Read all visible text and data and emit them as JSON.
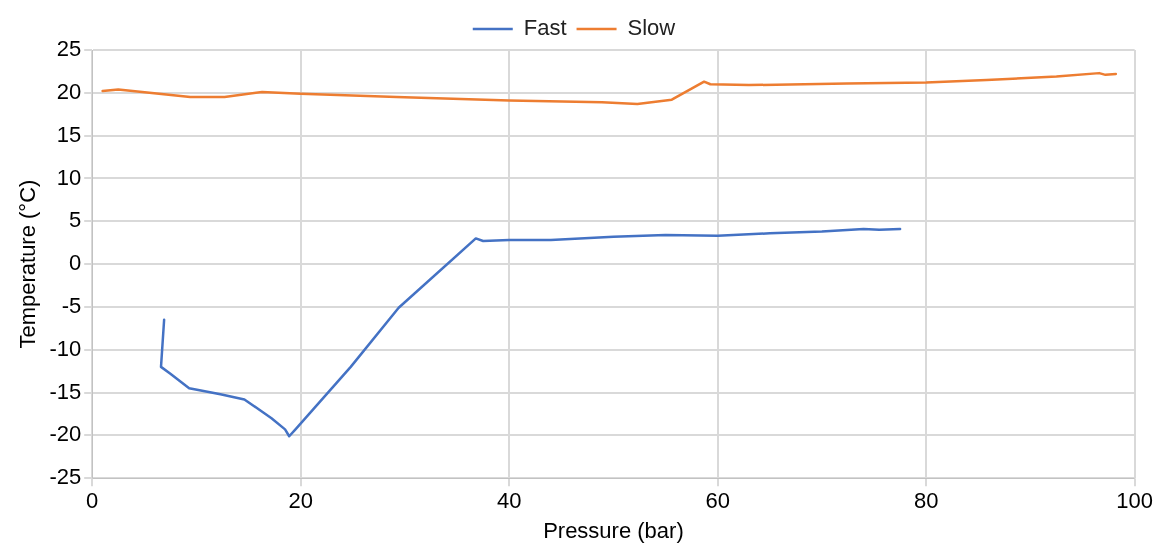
{
  "chart_data": {
    "type": "line",
    "xlabel": "Pressure (bar)",
    "ylabel": "Temperature (°C)",
    "xlim": [
      0,
      100
    ],
    "xticks": [
      0,
      20,
      40,
      60,
      80,
      100
    ],
    "ylim": [
      -25,
      25
    ],
    "yticks": [
      -25,
      -20,
      -15,
      -10,
      -5,
      0,
      5,
      10,
      15,
      20,
      25
    ],
    "grid": true,
    "legend": "top",
    "marker": "none",
    "line_style": "solid",
    "series": [
      {
        "name": "Fast",
        "color": "#4472c4",
        "x": [
          6.9,
          6.6,
          7.5,
          9.3,
          12.3,
          14.6,
          17.2,
          18.5,
          18.9,
          19.5,
          24.8,
          29.4,
          36.8,
          37.5,
          40,
          44,
          50,
          55,
          60,
          65,
          70,
          74,
          75.5,
          77.5
        ],
        "values": [
          -6.5,
          -12,
          -12.8,
          -14.5,
          -15.2,
          -15.8,
          -18,
          -19.3,
          -20.1,
          -19.3,
          -12,
          -5.1,
          3,
          2.7,
          2.8,
          2.8,
          3.2,
          3.4,
          3.3,
          3.6,
          3.8,
          4.1,
          4.0,
          4.1
        ]
      },
      {
        "name": "Slow",
        "color": "#ed7d31",
        "x": [
          1,
          2.5,
          9.4,
          12.7,
          16.3,
          20,
          29.2,
          40,
          48.9,
          52.3,
          55.6,
          58.7,
          59.3,
          63,
          72.4,
          80,
          85.8,
          92.5,
          96.6,
          97.2,
          98.2
        ],
        "values": [
          20.2,
          20.4,
          19.5,
          19.5,
          20.1,
          19.9,
          19.5,
          19.1,
          18.9,
          18.7,
          19.2,
          21.3,
          21.0,
          20.9,
          21.1,
          21.2,
          21.5,
          21.9,
          22.3,
          22.1,
          22.2
        ]
      }
    ]
  }
}
